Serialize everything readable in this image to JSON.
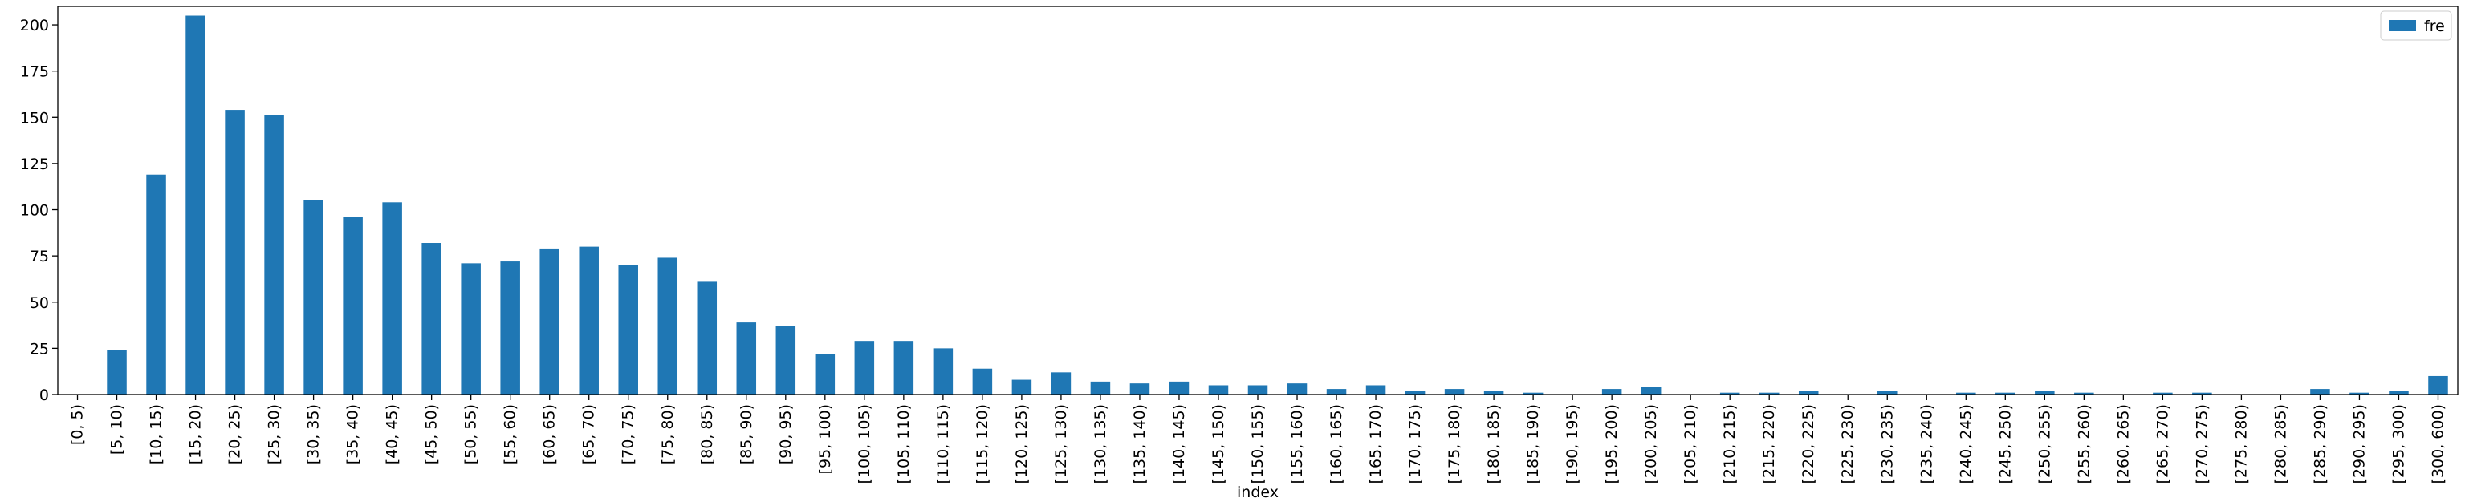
{
  "chart_data": {
    "type": "bar",
    "xlabel": "index",
    "ylabel": "",
    "ylim": [
      0,
      210
    ],
    "yticks": [
      0,
      25,
      50,
      75,
      100,
      125,
      150,
      175,
      200
    ],
    "grid": false,
    "legend": "top-right",
    "bar_color": "#1f77b4",
    "categories": [
      "[0, 5)",
      "[5, 10)",
      "[10, 15)",
      "[15, 20)",
      "[20, 25)",
      "[25, 30)",
      "[30, 35)",
      "[35, 40)",
      "[40, 45)",
      "[45, 50)",
      "[50, 55)",
      "[55, 60)",
      "[60, 65)",
      "[65, 70)",
      "[70, 75)",
      "[75, 80)",
      "[80, 85)",
      "[85, 90)",
      "[90, 95)",
      "[95, 100)",
      "[100, 105)",
      "[105, 110)",
      "[110, 115)",
      "[115, 120)",
      "[120, 125)",
      "[125, 130)",
      "[130, 135)",
      "[135, 140)",
      "[140, 145)",
      "[145, 150)",
      "[150, 155)",
      "[155, 160)",
      "[160, 165)",
      "[165, 170)",
      "[170, 175)",
      "[175, 180)",
      "[180, 185)",
      "[185, 190)",
      "[190, 195)",
      "[195, 200)",
      "[200, 205)",
      "[205, 210)",
      "[210, 215)",
      "[215, 220)",
      "[220, 225)",
      "[225, 230)",
      "[230, 235)",
      "[235, 240)",
      "[240, 245)",
      "[245, 250)",
      "[250, 255)",
      "[255, 260)",
      "[260, 265)",
      "[265, 270)",
      "[270, 275)",
      "[275, 280)",
      "[280, 285)",
      "[285, 290)",
      "[290, 295)",
      "[295, 300)",
      "[300, 600)"
    ],
    "series": [
      {
        "name": "fre",
        "values": [
          0,
          24,
          119,
          205,
          154,
          151,
          105,
          96,
          104,
          82,
          71,
          72,
          79,
          80,
          70,
          74,
          61,
          39,
          37,
          22,
          29,
          29,
          25,
          14,
          8,
          12,
          7,
          6,
          7,
          5,
          5,
          6,
          3,
          5,
          2,
          3,
          2,
          1,
          0,
          3,
          4,
          0,
          1,
          1,
          2,
          0,
          2,
          0,
          1,
          1,
          2,
          1,
          0,
          1,
          1,
          0,
          0,
          3,
          1,
          2,
          10
        ]
      }
    ]
  }
}
